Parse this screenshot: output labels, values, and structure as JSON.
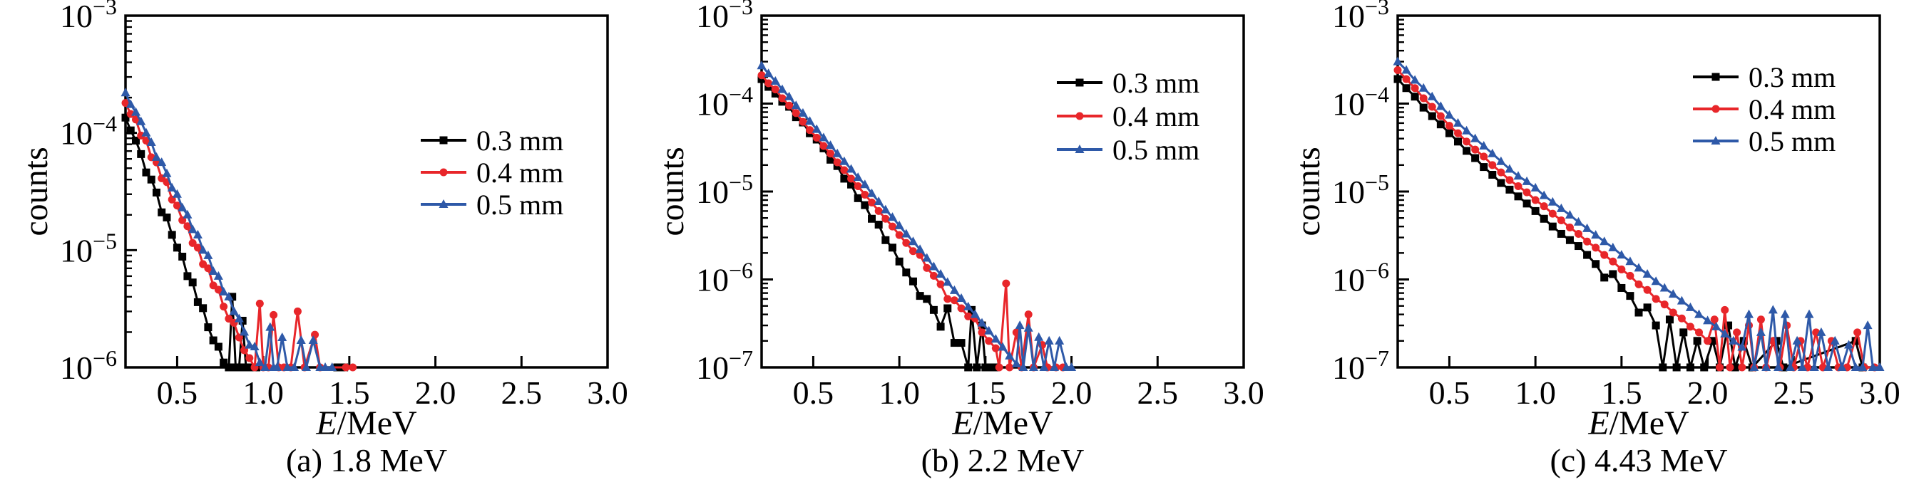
{
  "figure": {
    "background": "#ffffff",
    "ylabel": "counts",
    "xlabel": "E/MeV",
    "series_colors": {
      "black": "#000000",
      "red": "#e8262a",
      "blue": "#2e59a8"
    }
  },
  "chart_data": [
    {
      "type": "scatter",
      "caption": "(a) 1.8 MeV",
      "xlabel": "E/MeV",
      "ylabel": "counts",
      "xlim": [
        0.2,
        3.0
      ],
      "xticks": [
        0.5,
        1.0,
        1.5,
        2.0,
        2.5,
        3.0
      ],
      "yticks_exp": [
        -3,
        -4,
        -5,
        -6
      ],
      "grid": false,
      "legend_position": "upper-right",
      "legend_rows": [
        197,
        242,
        287
      ],
      "series": [
        {
          "name": "0.3 mm",
          "color": "#000000",
          "marker": "square",
          "x0": 0.2,
          "dx": 0.03,
          "y": [
            0.000135,
            0.000105,
            8.6e-05,
            6.6e-05,
            4.6e-05,
            4e-05,
            3.1e-05,
            2.1e-05,
            1.9e-05,
            1.35e-05,
            1.05e-05,
            8.8e-06,
            6e-06,
            5.3e-06,
            3.6e-06,
            3.2e-06,
            2.2e-06,
            1.7e-06,
            1.5e-06,
            1.1e-06
          ],
          "tail": [
            [
              0.8,
              1e-06
            ],
            [
              0.82,
              4e-06
            ],
            [
              0.84,
              1e-06
            ],
            [
              0.86,
              1e-06
            ],
            [
              0.88,
              2.5e-06
            ],
            [
              0.9,
              1e-06
            ],
            [
              0.93,
              1e-06
            ],
            [
              0.96,
              1e-06
            ],
            [
              1.43,
              1e-06
            ],
            [
              1.47,
              1e-06
            ]
          ]
        },
        {
          "name": "0.4 mm",
          "color": "#e8262a",
          "marker": "circle",
          "x0": 0.2,
          "dx": 0.03,
          "y": [
            0.00018,
            0.000145,
            0.00013,
            9.5e-05,
            8.6e-05,
            6.2e-05,
            5.6e-05,
            4.1e-05,
            3.8e-05,
            2.7e-05,
            2.4e-05,
            1.8e-05,
            1.6e-05,
            1.15e-05,
            1.05e-05,
            7.6e-06,
            7e-06,
            5e-06,
            4.6e-06,
            3.3e-06,
            2.6e-06,
            2.4e-06,
            1.8e-06,
            1.4e-06,
            1.2e-06,
            1e-06
          ],
          "tail": [
            [
              0.98,
              3.5e-06
            ],
            [
              1.0,
              1e-06
            ],
            [
              1.03,
              1e-06
            ],
            [
              1.06,
              2.8e-06
            ],
            [
              1.09,
              1e-06
            ],
            [
              1.12,
              1e-06
            ],
            [
              1.16,
              1e-06
            ],
            [
              1.2,
              3e-06
            ],
            [
              1.24,
              1e-06
            ],
            [
              1.3,
              1.9e-06
            ],
            [
              1.33,
              1e-06
            ],
            [
              1.48,
              1e-06
            ],
            [
              1.52,
              1e-06
            ]
          ]
        },
        {
          "name": "0.5 mm",
          "color": "#2e59a8",
          "marker": "triangle",
          "x0": 0.2,
          "dx": 0.03,
          "y": [
            0.00022,
            0.000175,
            0.00015,
            0.000125,
            0.0001,
            8.3e-05,
            6.2e-05,
            5.6e-05,
            4.5e-05,
            3.4e-05,
            3e-05,
            2.3e-05,
            2e-05,
            1.5e-05,
            1.35e-05,
            1e-05,
            9e-06,
            6.6e-06,
            6e-06,
            4.4e-06,
            4e-06,
            3e-06,
            2.6e-06,
            2e-06,
            1.55e-06,
            1.5e-06,
            1.1e-06,
            1e-06
          ],
          "tail": [
            [
              1.04,
              2.2e-06
            ],
            [
              1.06,
              1e-06
            ],
            [
              1.08,
              1e-06
            ],
            [
              1.11,
              1.8e-06
            ],
            [
              1.14,
              1e-06
            ],
            [
              1.18,
              1e-06
            ],
            [
              1.22,
              1.7e-06
            ],
            [
              1.25,
              1e-06
            ],
            [
              1.29,
              1.7e-06
            ],
            [
              1.33,
              1e-06
            ],
            [
              1.36,
              1e-06
            ],
            [
              1.4,
              1e-06
            ]
          ]
        }
      ]
    },
    {
      "type": "scatter",
      "caption": "(b) 2.2 MeV",
      "xlabel": "E/MeV",
      "ylabel": "counts",
      "xlim": [
        0.2,
        3.0
      ],
      "xticks": [
        0.5,
        1.0,
        1.5,
        2.0,
        2.5,
        3.0
      ],
      "yticks_exp": [
        -3,
        -4,
        -5,
        -6,
        -7
      ],
      "grid": false,
      "legend_position": "upper-right",
      "legend_rows": [
        116,
        163,
        210
      ],
      "series": [
        {
          "name": "0.3 mm",
          "color": "#000000",
          "marker": "square",
          "x0": 0.2,
          "dx": 0.04,
          "y": [
            0.00019,
            0.000155,
            0.00013,
            0.000105,
            9.2e-05,
            7e-05,
            6.1e-05,
            4.6e-05,
            3.9e-05,
            3.1e-05,
            2.3e-05,
            1.95e-05,
            1.4e-05,
            1.2e-05,
            8.4e-06,
            7e-06,
            4.9e-06,
            4.2e-06,
            2.8e-06,
            2.3e-06,
            1.6e-06,
            1.2e-06,
            9.5e-07,
            6.5e-07,
            6e-07,
            4.5e-07,
            2.9e-07,
            4.7e-07,
            1.9e-07,
            1.9e-07
          ],
          "tail": [
            [
              1.4,
              1e-07
            ],
            [
              1.42,
              4.5e-07
            ],
            [
              1.45,
              1e-07
            ],
            [
              1.48,
              3e-07
            ],
            [
              1.5,
              1e-07
            ],
            [
              1.53,
              1e-07
            ],
            [
              1.56,
              1e-07
            ]
          ]
        },
        {
          "name": "0.4 mm",
          "color": "#e8262a",
          "marker": "circle",
          "x0": 0.2,
          "dx": 0.04,
          "y": [
            0.00021,
            0.00017,
            0.000145,
            0.000115,
            9.5e-05,
            7.8e-05,
            6.2e-05,
            5e-05,
            4.1e-05,
            3.3e-05,
            2.7e-05,
            2.15e-05,
            1.75e-05,
            1.4e-05,
            1.15e-05,
            9.2e-06,
            7.5e-06,
            6e-06,
            4.9e-06,
            4e-06,
            3.2e-06,
            2.6e-06,
            2.1e-06,
            1.9e-06,
            1.35e-06,
            1.1e-06,
            8.8e-07,
            6e-07,
            5.8e-07,
            4.7e-07,
            3.8e-07,
            3.6e-07,
            2.5e-07,
            2e-07,
            1.65e-07
          ],
          "tail": [
            [
              1.58,
              1e-07
            ],
            [
              1.62,
              9e-07
            ],
            [
              1.64,
              1e-07
            ],
            [
              1.68,
              2.5e-07
            ],
            [
              1.71,
              1e-07
            ],
            [
              1.75,
              4e-07
            ],
            [
              1.78,
              1e-07
            ],
            [
              1.83,
              1.8e-07
            ],
            [
              1.86,
              1e-07
            ],
            [
              1.91,
              1e-07
            ],
            [
              1.95,
              1e-07
            ]
          ]
        },
        {
          "name": "0.5 mm",
          "color": "#2e59a8",
          "marker": "triangle",
          "x0": 0.2,
          "dx": 0.04,
          "y": [
            0.00027,
            0.00022,
            0.00018,
            0.000145,
            0.00012,
            9.5e-05,
            7.8e-05,
            6.3e-05,
            5.1e-05,
            4.1e-05,
            3.35e-05,
            2.7e-05,
            2.2e-05,
            1.8e-05,
            1.45e-05,
            1.2e-05,
            9.5e-06,
            7.7e-06,
            6.2e-06,
            5.1e-06,
            4.1e-06,
            3.3e-06,
            2.7e-06,
            2.2e-06,
            1.75e-06,
            1.4e-06,
            1.15e-06,
            9.3e-07,
            7.5e-07,
            6.1e-07,
            4.9e-07,
            4e-07,
            3.2e-07,
            2.6e-07,
            2.1e-07,
            1.7e-07,
            1.35e-07,
            1.1e-07
          ],
          "tail": [
            [
              1.7,
              3e-07
            ],
            [
              1.72,
              1e-07
            ],
            [
              1.75,
              2.8e-07
            ],
            [
              1.78,
              1e-07
            ],
            [
              1.81,
              2.2e-07
            ],
            [
              1.84,
              1e-07
            ],
            [
              1.87,
              2e-07
            ],
            [
              1.9,
              1e-07
            ],
            [
              1.93,
              2e-07
            ],
            [
              1.97,
              1e-07
            ],
            [
              2.0,
              1e-07
            ]
          ]
        }
      ]
    },
    {
      "type": "scatter",
      "caption": "(c) 4.43 MeV",
      "xlabel": "E/MeV",
      "ylabel": "counts",
      "xlim": [
        0.2,
        3.0
      ],
      "xticks": [
        0.5,
        1.0,
        1.5,
        2.0,
        2.5,
        3.0
      ],
      "yticks_exp": [
        -3,
        -4,
        -5,
        -6,
        -7
      ],
      "grid": false,
      "legend_position": "upper-right",
      "legend_rows": [
        108,
        153,
        198
      ],
      "series": [
        {
          "name": "0.3 mm",
          "color": "#000000",
          "marker": "square",
          "x0": 0.2,
          "dx": 0.05,
          "y": [
            0.00019,
            0.00015,
            0.00012,
            9e-05,
            7.2e-05,
            5.8e-05,
            4.6e-05,
            3.7e-05,
            2.9e-05,
            2.4e-05,
            1.9e-05,
            1.55e-05,
            1.25e-05,
            1.05e-05,
            8.8e-06,
            7.3e-06,
            6e-06,
            4.9e-06,
            4e-06,
            3.3e-06,
            2.8e-06,
            2.4e-06,
            1.9e-06,
            1.5e-06,
            1.05e-06,
            1.15e-06,
            8e-07,
            6.5e-07,
            4.2e-07,
            4.8e-07,
            3e-07
          ],
          "tail": [
            [
              1.74,
              1e-07
            ],
            [
              1.78,
              3.5e-07
            ],
            [
              1.82,
              1e-07
            ],
            [
              1.86,
              2.5e-07
            ],
            [
              1.9,
              1e-07
            ],
            [
              1.94,
              2e-07
            ],
            [
              1.98,
              1e-07
            ],
            [
              2.03,
              2e-07
            ],
            [
              2.07,
              1e-07
            ],
            [
              2.12,
              3e-07
            ],
            [
              2.16,
              1e-07
            ],
            [
              2.21,
              2e-07
            ],
            [
              2.26,
              1e-07
            ],
            [
              2.4,
              2e-07
            ],
            [
              2.44,
              1e-07
            ],
            [
              2.86,
              2e-07
            ],
            [
              2.9,
              1e-07
            ]
          ]
        },
        {
          "name": "0.4 mm",
          "color": "#e8262a",
          "marker": "circle",
          "x0": 0.2,
          "dx": 0.05,
          "y": [
            0.00024,
            0.00019,
            0.00015,
            0.000115,
            9.2e-05,
            7.2e-05,
            5.6e-05,
            4.6e-05,
            3.7e-05,
            3e-05,
            2.5e-05,
            2e-05,
            1.65e-05,
            1.35e-05,
            1.15e-05,
            9.8e-06,
            8e-06,
            6.8e-06,
            5.6e-06,
            4.7e-06,
            3.9e-06,
            3.3e-06,
            2.7e-06,
            2.3e-06,
            1.9e-06,
            1.6e-06,
            1.3e-06,
            1.1e-06,
            8.8e-07,
            7.6e-07,
            6e-07,
            5.2e-07,
            4.2e-07,
            3.6e-07,
            2.9e-07,
            2.5e-07,
            2e-07
          ],
          "tail": [
            [
              2.04,
              3.5e-07
            ],
            [
              2.07,
              1e-07
            ],
            [
              2.1,
              4.5e-07
            ],
            [
              2.13,
              1e-07
            ],
            [
              2.17,
              2.5e-07
            ],
            [
              2.2,
              1e-07
            ],
            [
              2.24,
              3e-07
            ],
            [
              2.27,
              1e-07
            ],
            [
              2.31,
              3.5e-07
            ],
            [
              2.34,
              1e-07
            ],
            [
              2.38,
              2e-07
            ],
            [
              2.42,
              1e-07
            ],
            [
              2.46,
              3e-07
            ],
            [
              2.5,
              1e-07
            ],
            [
              2.54,
              2e-07
            ],
            [
              2.58,
              1e-07
            ],
            [
              2.63,
              2.5e-07
            ],
            [
              2.67,
              1e-07
            ],
            [
              2.72,
              2e-07
            ],
            [
              2.76,
              1e-07
            ],
            [
              2.81,
              1e-07
            ],
            [
              2.87,
              2.5e-07
            ],
            [
              2.91,
              1e-07
            ],
            [
              2.97,
              1e-07
            ]
          ]
        },
        {
          "name": "0.5 mm",
          "color": "#2e59a8",
          "marker": "triangle",
          "x0": 0.2,
          "dx": 0.05,
          "y": [
            0.0003,
            0.00024,
            0.000185,
            0.00015,
            0.00012,
            9.3e-05,
            7.4e-05,
            6e-05,
            4.9e-05,
            4e-05,
            3.3e-05,
            2.7e-05,
            2.2e-05,
            1.8e-05,
            1.5e-05,
            1.3e-05,
            1.1e-05,
            9e-06,
            7.6e-06,
            6.4e-06,
            5.4e-06,
            4.5e-06,
            3.8e-06,
            3.2e-06,
            2.7e-06,
            2.3e-06,
            1.9e-06,
            1.6e-06,
            1.35e-06,
            1.15e-06,
            9.5e-07,
            8e-07,
            6.8e-07,
            5.7e-07,
            4.8e-07,
            4e-07,
            3.4e-07,
            2.9e-07,
            2.4e-07,
            2e-07,
            1.7e-07
          ],
          "tail": [
            [
              2.24,
              4e-07
            ],
            [
              2.27,
              1e-07
            ],
            [
              2.31,
              2.5e-07
            ],
            [
              2.34,
              1e-07
            ],
            [
              2.38,
              4.5e-07
            ],
            [
              2.41,
              1e-07
            ],
            [
              2.45,
              4e-07
            ],
            [
              2.48,
              1e-07
            ],
            [
              2.52,
              2e-07
            ],
            [
              2.55,
              1e-07
            ],
            [
              2.59,
              4e-07
            ],
            [
              2.62,
              1e-07
            ],
            [
              2.66,
              2.5e-07
            ],
            [
              2.7,
              1e-07
            ],
            [
              2.74,
              2e-07
            ],
            [
              2.78,
              1e-07
            ],
            [
              2.82,
              1.8e-07
            ],
            [
              2.86,
              1e-07
            ],
            [
              2.9,
              1e-07
            ],
            [
              2.93,
              3e-07
            ],
            [
              2.96,
              1e-07
            ],
            [
              3.0,
              1e-07
            ]
          ]
        }
      ]
    }
  ]
}
